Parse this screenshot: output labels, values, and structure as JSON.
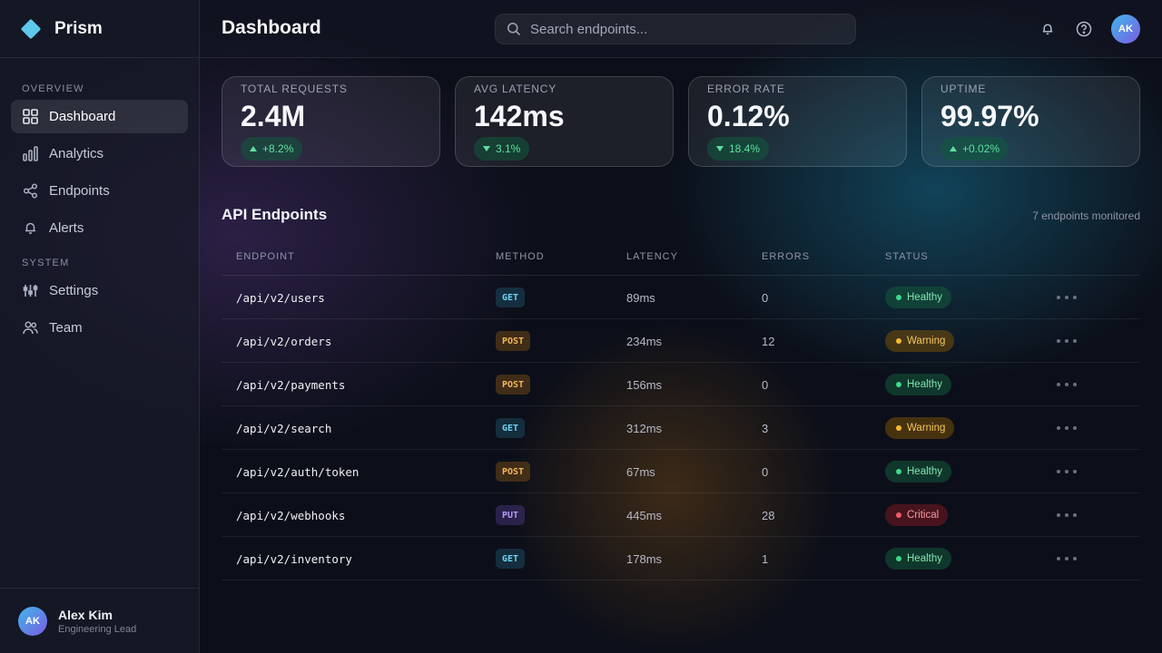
{
  "app": {
    "name": "Prism"
  },
  "sidebar": {
    "sections": [
      {
        "heading": "OVERVIEW",
        "items": [
          {
            "label": "Dashboard",
            "icon": "grid-icon",
            "active": true
          },
          {
            "label": "Analytics",
            "icon": "bar-chart-icon",
            "active": false
          },
          {
            "label": "Endpoints",
            "icon": "share-nodes-icon",
            "active": false
          },
          {
            "label": "Alerts",
            "icon": "bell-icon",
            "active": false
          }
        ]
      },
      {
        "heading": "SYSTEM",
        "items": [
          {
            "label": "Settings",
            "icon": "sliders-icon",
            "active": false
          },
          {
            "label": "Team",
            "icon": "users-icon",
            "active": false
          }
        ]
      }
    ],
    "user": {
      "initials": "AK",
      "name": "Alex Kim",
      "role": "Engineering Lead"
    }
  },
  "header": {
    "title": "Dashboard",
    "search_placeholder": "Search endpoints...",
    "avatar_initials": "AK"
  },
  "stats": [
    {
      "label": "TOTAL REQUESTS",
      "value": "2.4M",
      "delta": "+8.2%",
      "direction": "up"
    },
    {
      "label": "AVG LATENCY",
      "value": "142ms",
      "delta": "3.1%",
      "direction": "down"
    },
    {
      "label": "ERROR RATE",
      "value": "0.12%",
      "delta": "18.4%",
      "direction": "down"
    },
    {
      "label": "UPTIME",
      "value": "99.97%",
      "delta": "+0.02%",
      "direction": "up"
    }
  ],
  "endpoints": {
    "title": "API Endpoints",
    "meta": "7 endpoints monitored",
    "columns": [
      "ENDPOINT",
      "METHOD",
      "LATENCY",
      "ERRORS",
      "STATUS"
    ],
    "rows": [
      {
        "endpoint": "/api/v2/users",
        "method": "GET",
        "latency": "89ms",
        "errors": "0",
        "status": "Healthy"
      },
      {
        "endpoint": "/api/v2/orders",
        "method": "POST",
        "latency": "234ms",
        "errors": "12",
        "status": "Warning"
      },
      {
        "endpoint": "/api/v2/payments",
        "method": "POST",
        "latency": "156ms",
        "errors": "0",
        "status": "Healthy"
      },
      {
        "endpoint": "/api/v2/search",
        "method": "GET",
        "latency": "312ms",
        "errors": "3",
        "status": "Warning"
      },
      {
        "endpoint": "/api/v2/auth/token",
        "method": "POST",
        "latency": "67ms",
        "errors": "0",
        "status": "Healthy"
      },
      {
        "endpoint": "/api/v2/webhooks",
        "method": "PUT",
        "latency": "445ms",
        "errors": "28",
        "status": "Critical"
      },
      {
        "endpoint": "/api/v2/inventory",
        "method": "GET",
        "latency": "178ms",
        "errors": "1",
        "status": "Healthy"
      }
    ]
  },
  "colors": {
    "accent": "#5ec8ec",
    "healthy": "#3ed88a",
    "warning": "#f5b82e",
    "critical": "#ef5b64"
  }
}
